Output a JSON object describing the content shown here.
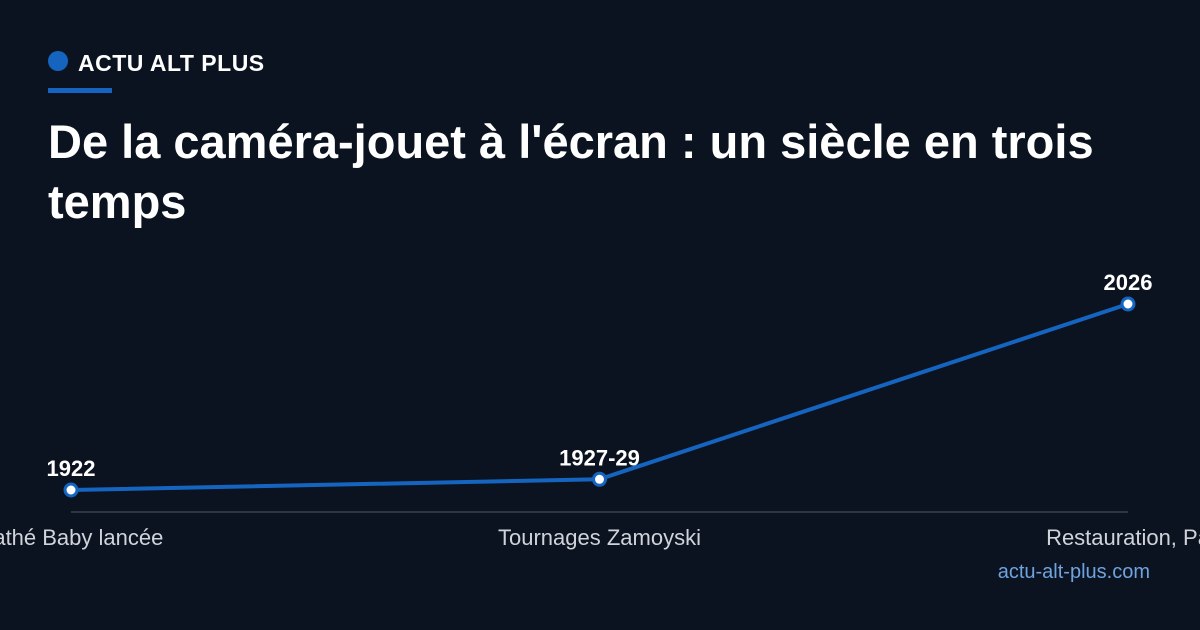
{
  "header": {
    "brand": "ACTU ALT PLUS"
  },
  "chart_data": {
    "type": "line",
    "title": "De la caméra-jouet à l'écran : un siècle en trois temps",
    "categories": [
      "Pathé Baby lancée",
      "Tournages Zamoyski",
      "Restauration, Pa"
    ],
    "values": [
      1922,
      1928,
      2026
    ],
    "value_labels": [
      "1922",
      "1927-29",
      "2026"
    ],
    "color": "#1565c0"
  },
  "footer": {
    "source": "actu-alt-plus.com"
  }
}
